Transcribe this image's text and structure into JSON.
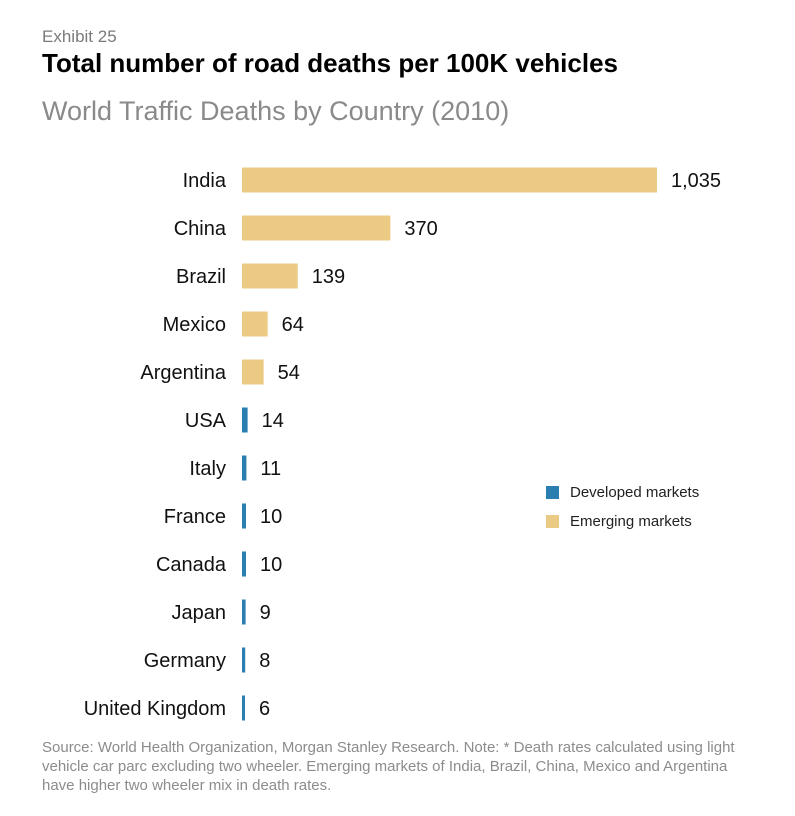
{
  "header": {
    "exhibit": "Exhibit 25",
    "title": "Total number of road deaths per 100K vehicles",
    "subtitle": "World Traffic Deaths by Country (2010)"
  },
  "chart_data": {
    "type": "bar",
    "orientation": "horizontal",
    "categories": [
      "India",
      "China",
      "Brazil",
      "Mexico",
      "Argentina",
      "USA",
      "Italy",
      "France",
      "Canada",
      "Japan",
      "Germany",
      "United Kingdom"
    ],
    "values": [
      1035,
      370,
      139,
      64,
      54,
      14,
      11,
      10,
      10,
      9,
      8,
      6
    ],
    "value_labels": [
      "1,035",
      "370",
      "139",
      "64",
      "54",
      "14",
      "11",
      "10",
      "10",
      "9",
      "8",
      "6"
    ],
    "groups": [
      "emerging",
      "emerging",
      "emerging",
      "emerging",
      "emerging",
      "developed",
      "developed",
      "developed",
      "developed",
      "developed",
      "developed",
      "developed"
    ],
    "group_colors": {
      "developed": "#2a7fb0",
      "emerging": "#ebcb84"
    },
    "legend": [
      {
        "label": "Developed markets",
        "group": "developed"
      },
      {
        "label": "Emerging markets",
        "group": "emerging"
      }
    ],
    "legend_position": "right",
    "xlim": [
      0,
      1035
    ],
    "grid": false
  },
  "footer": {
    "source": "Source: World Health Organization, Morgan Stanley Research. Note: * Death rates calculated using light vehicle car parc excluding two wheeler.  Emerging markets of India, Brazil, China, Mexico and Argentina have higher two wheeler mix in death rates."
  }
}
